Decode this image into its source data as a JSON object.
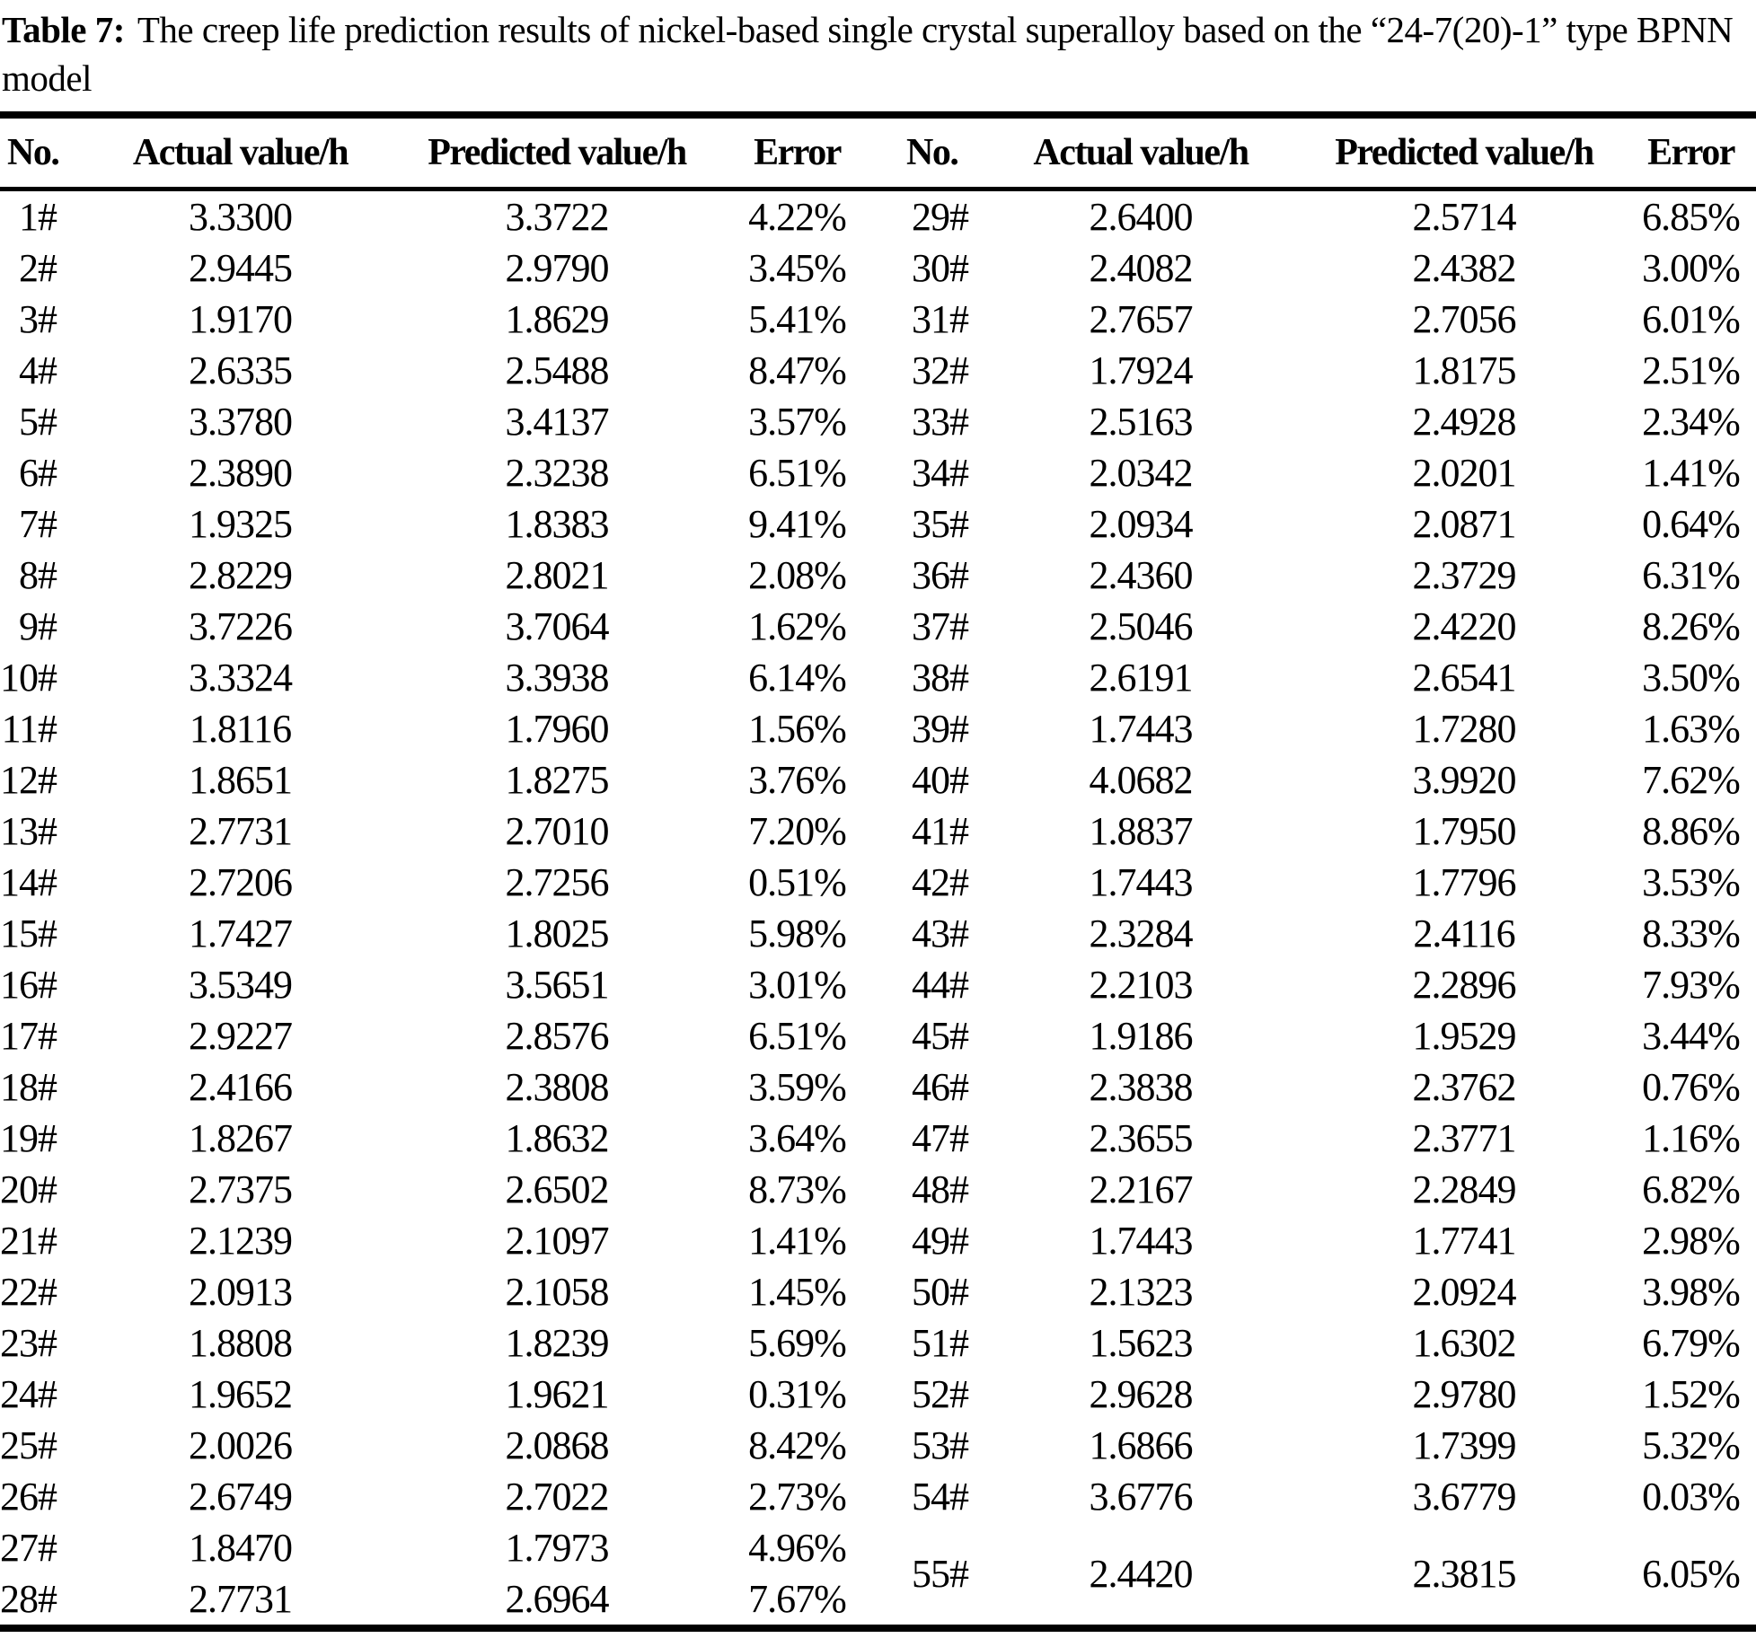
{
  "title": {
    "label": "Table 7:",
    "text": "The creep life prediction results of nickel-based single crystal superalloy based on the “24-7(20)-1” type BPNN model"
  },
  "table": {
    "headers": [
      "No.",
      "Actual value/h",
      "Predicted value/h",
      "Error",
      "No.",
      "Actual value/h",
      "Predicted value/h",
      "Error"
    ],
    "left_rows": [
      {
        "no": "1#",
        "actual": "3.3300",
        "predicted": "3.3722",
        "error": "4.22%"
      },
      {
        "no": "2#",
        "actual": "2.9445",
        "predicted": "2.9790",
        "error": "3.45%"
      },
      {
        "no": "3#",
        "actual": "1.9170",
        "predicted": "1.8629",
        "error": "5.41%"
      },
      {
        "no": "4#",
        "actual": "2.6335",
        "predicted": "2.5488",
        "error": "8.47%"
      },
      {
        "no": "5#",
        "actual": "3.3780",
        "predicted": "3.4137",
        "error": "3.57%"
      },
      {
        "no": "6#",
        "actual": "2.3890",
        "predicted": "2.3238",
        "error": "6.51%"
      },
      {
        "no": "7#",
        "actual": "1.9325",
        "predicted": "1.8383",
        "error": "9.41%"
      },
      {
        "no": "8#",
        "actual": "2.8229",
        "predicted": "2.8021",
        "error": "2.08%"
      },
      {
        "no": "9#",
        "actual": "3.7226",
        "predicted": "3.7064",
        "error": "1.62%"
      },
      {
        "no": "10#",
        "actual": "3.3324",
        "predicted": "3.3938",
        "error": "6.14%"
      },
      {
        "no": "11#",
        "actual": "1.8116",
        "predicted": "1.7960",
        "error": "1.56%"
      },
      {
        "no": "12#",
        "actual": "1.8651",
        "predicted": "1.8275",
        "error": "3.76%"
      },
      {
        "no": "13#",
        "actual": "2.7731",
        "predicted": "2.7010",
        "error": "7.20%"
      },
      {
        "no": "14#",
        "actual": "2.7206",
        "predicted": "2.7256",
        "error": "0.51%"
      },
      {
        "no": "15#",
        "actual": "1.7427",
        "predicted": "1.8025",
        "error": "5.98%"
      },
      {
        "no": "16#",
        "actual": "3.5349",
        "predicted": "3.5651",
        "error": "3.01%"
      },
      {
        "no": "17#",
        "actual": "2.9227",
        "predicted": "2.8576",
        "error": "6.51%"
      },
      {
        "no": "18#",
        "actual": "2.4166",
        "predicted": "2.3808",
        "error": "3.59%"
      },
      {
        "no": "19#",
        "actual": "1.8267",
        "predicted": "1.8632",
        "error": "3.64%"
      },
      {
        "no": "20#",
        "actual": "2.7375",
        "predicted": "2.6502",
        "error": "8.73%"
      },
      {
        "no": "21#",
        "actual": "2.1239",
        "predicted": "2.1097",
        "error": "1.41%"
      },
      {
        "no": "22#",
        "actual": "2.0913",
        "predicted": "2.1058",
        "error": "1.45%"
      },
      {
        "no": "23#",
        "actual": "1.8808",
        "predicted": "1.8239",
        "error": "5.69%"
      },
      {
        "no": "24#",
        "actual": "1.9652",
        "predicted": "1.9621",
        "error": "0.31%"
      },
      {
        "no": "25#",
        "actual": "2.0026",
        "predicted": "2.0868",
        "error": "8.42%"
      },
      {
        "no": "26#",
        "actual": "2.6749",
        "predicted": "2.7022",
        "error": "2.73%"
      },
      {
        "no": "27#",
        "actual": "1.8470",
        "predicted": "1.7973",
        "error": "4.96%"
      },
      {
        "no": "28#",
        "actual": "2.7731",
        "predicted": "2.6964",
        "error": "7.67%"
      }
    ],
    "right_rows": [
      {
        "no": "29#",
        "actual": "2.6400",
        "predicted": "2.5714",
        "error": "6.85%"
      },
      {
        "no": "30#",
        "actual": "2.4082",
        "predicted": "2.4382",
        "error": "3.00%"
      },
      {
        "no": "31#",
        "actual": "2.7657",
        "predicted": "2.7056",
        "error": "6.01%"
      },
      {
        "no": "32#",
        "actual": "1.7924",
        "predicted": "1.8175",
        "error": "2.51%"
      },
      {
        "no": "33#",
        "actual": "2.5163",
        "predicted": "2.4928",
        "error": "2.34%"
      },
      {
        "no": "34#",
        "actual": "2.0342",
        "predicted": "2.0201",
        "error": "1.41%"
      },
      {
        "no": "35#",
        "actual": "2.0934",
        "predicted": "2.0871",
        "error": "0.64%"
      },
      {
        "no": "36#",
        "actual": "2.4360",
        "predicted": "2.3729",
        "error": "6.31%"
      },
      {
        "no": "37#",
        "actual": "2.5046",
        "predicted": "2.4220",
        "error": "8.26%"
      },
      {
        "no": "38#",
        "actual": "2.6191",
        "predicted": "2.6541",
        "error": "3.50%"
      },
      {
        "no": "39#",
        "actual": "1.7443",
        "predicted": "1.7280",
        "error": "1.63%"
      },
      {
        "no": "40#",
        "actual": "4.0682",
        "predicted": "3.9920",
        "error": "7.62%"
      },
      {
        "no": "41#",
        "actual": "1.8837",
        "predicted": "1.7950",
        "error": "8.86%"
      },
      {
        "no": "42#",
        "actual": "1.7443",
        "predicted": "1.7796",
        "error": "3.53%"
      },
      {
        "no": "43#",
        "actual": "2.3284",
        "predicted": "2.4116",
        "error": "8.33%"
      },
      {
        "no": "44#",
        "actual": "2.2103",
        "predicted": "2.2896",
        "error": "7.93%"
      },
      {
        "no": "45#",
        "actual": "1.9186",
        "predicted": "1.9529",
        "error": "3.44%"
      },
      {
        "no": "46#",
        "actual": "2.3838",
        "predicted": "2.3762",
        "error": "0.76%"
      },
      {
        "no": "47#",
        "actual": "2.3655",
        "predicted": "2.3771",
        "error": "1.16%"
      },
      {
        "no": "48#",
        "actual": "2.2167",
        "predicted": "2.2849",
        "error": "6.82%"
      },
      {
        "no": "49#",
        "actual": "1.7443",
        "predicted": "1.7741",
        "error": "2.98%"
      },
      {
        "no": "50#",
        "actual": "2.1323",
        "predicted": "2.0924",
        "error": "3.98%"
      },
      {
        "no": "51#",
        "actual": "1.5623",
        "predicted": "1.6302",
        "error": "6.79%"
      },
      {
        "no": "52#",
        "actual": "2.9628",
        "predicted": "2.9780",
        "error": "1.52%"
      },
      {
        "no": "53#",
        "actual": "1.6866",
        "predicted": "1.7399",
        "error": "5.32%"
      },
      {
        "no": "54#",
        "actual": "3.6776",
        "predicted": "3.6779",
        "error": "0.03%"
      }
    ],
    "row_55": {
      "no": "55#",
      "actual": "2.4420",
      "predicted": "2.3815",
      "error": "6.05%"
    }
  }
}
